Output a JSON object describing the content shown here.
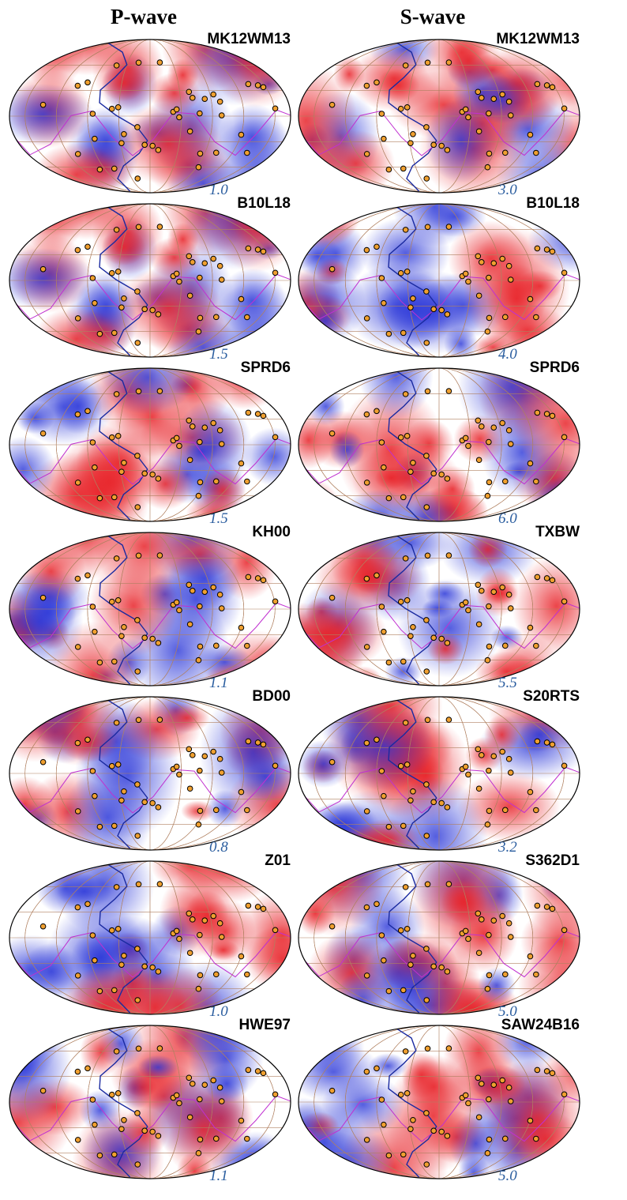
{
  "columns": [
    {
      "title": "P-wave",
      "panels": [
        {
          "model": "MK12WM13",
          "scale": "1.0"
        },
        {
          "model": "B10L18",
          "scale": "1.5"
        },
        {
          "model": "SPRD6",
          "scale": "1.5"
        },
        {
          "model": "KH00",
          "scale": "1.1"
        },
        {
          "model": "BD00",
          "scale": "0.8"
        },
        {
          "model": "Z01",
          "scale": "1.0"
        },
        {
          "model": "HWE97",
          "scale": "1.1"
        }
      ]
    },
    {
      "title": "S-wave",
      "panels": [
        {
          "model": "MK12WM13",
          "scale": "3.0"
        },
        {
          "model": "B10L18",
          "scale": "4.0"
        },
        {
          "model": "SPRD6",
          "scale": "6.0"
        },
        {
          "model": "TXBW",
          "scale": "5.5"
        },
        {
          "model": "S20RTS",
          "scale": "3.2"
        },
        {
          "model": "S362D1",
          "scale": "5.0"
        },
        {
          "model": "SAW24B16",
          "scale": "5.0"
        }
      ]
    }
  ]
}
